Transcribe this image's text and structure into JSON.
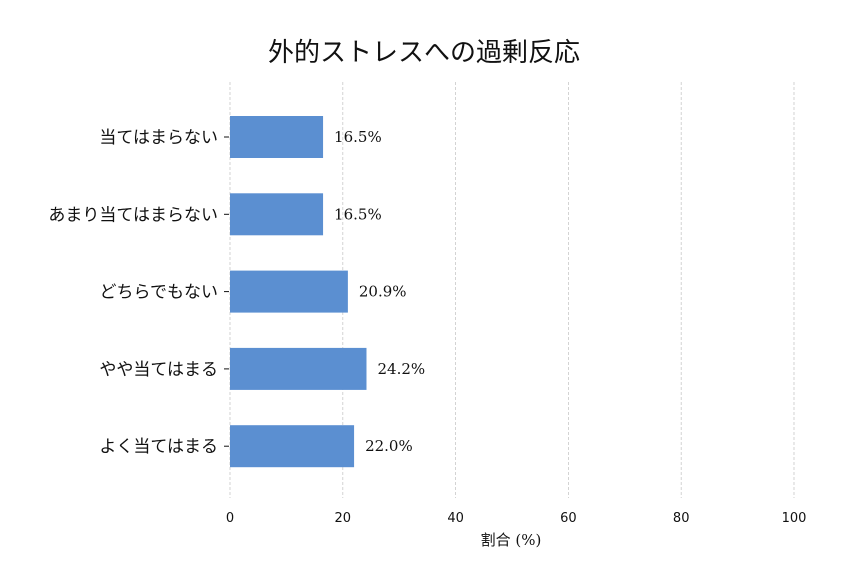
{
  "chart_data": {
    "type": "bar",
    "orientation": "horizontal",
    "title": "外的ストレスへの過剰反応",
    "xlabel": "割合 (%)",
    "ylabel": "",
    "xlim": [
      0,
      100
    ],
    "xticks": [
      "0",
      "20",
      "40",
      "60",
      "80",
      "100"
    ],
    "grid": true,
    "categories": [
      "当てはまらない",
      "あまり当てはまらない",
      "どちらでもない",
      "やや当てはまる",
      "よく当てはまる"
    ],
    "values": [
      16.5,
      16.5,
      20.9,
      24.2,
      22.0
    ],
    "value_labels": [
      "16.5%",
      "16.5%",
      "20.9%",
      "24.2%",
      "22.0%"
    ],
    "bar_color": "#5b8fd1"
  }
}
